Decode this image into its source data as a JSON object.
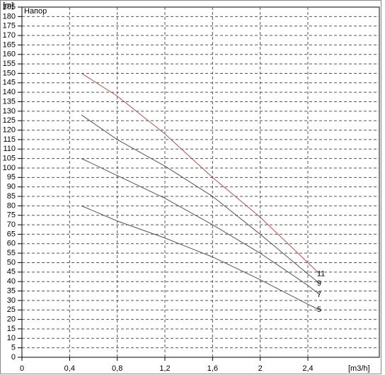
{
  "chart_data": {
    "type": "line",
    "plot_label": "Напор",
    "x_label": "[m3/h]",
    "y_label": "[m]",
    "xlim": [
      0,
      3
    ],
    "ylim": [
      0,
      185
    ],
    "xticks": [
      0,
      {
        "value": 0.4,
        "label": "0,4"
      },
      {
        "value": 0.8,
        "label": "0,8"
      },
      {
        "value": 1.2,
        "label": "1,2"
      },
      {
        "value": 1.6,
        "label": "1,6"
      },
      2,
      {
        "value": 2.4,
        "label": "2,4"
      }
    ],
    "yticks": [
      0,
      5,
      10,
      15,
      20,
      25,
      30,
      35,
      40,
      45,
      50,
      55,
      60,
      65,
      70,
      75,
      80,
      85,
      90,
      95,
      100,
      105,
      110,
      115,
      120,
      125,
      130,
      135,
      140,
      145,
      150,
      155,
      160,
      165,
      170,
      175,
      180,
      185
    ],
    "grid": true,
    "x": [
      0.5,
      0.8,
      1.2,
      1.6,
      2.0,
      2.4,
      2.5
    ],
    "series": [
      {
        "name": "11",
        "color": "#b05050",
        "values": [
          150,
          138,
          118,
          95,
          74,
          50,
          44
        ]
      },
      {
        "name": "9",
        "color": "#555555",
        "values": [
          128,
          115,
          101,
          85,
          65,
          44,
          39
        ]
      },
      {
        "name": "7",
        "color": "#555555",
        "values": [
          105,
          96,
          84,
          70,
          55,
          38,
          33
        ]
      },
      {
        "name": "5",
        "color": "#555555",
        "values": [
          80,
          72,
          63,
          53,
          41,
          28,
          25
        ]
      }
    ]
  }
}
